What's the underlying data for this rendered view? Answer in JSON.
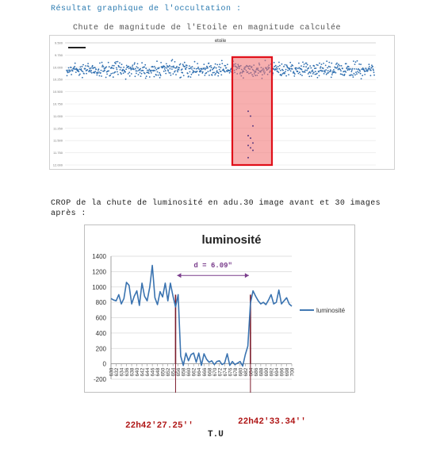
{
  "heading": "Résultat graphique de l'occultation :",
  "top_caption": "Chute de magnitude de l'Etoile en magnitude calculée",
  "section2_caption": "CROP de la chute de luminosité en adu.30 image avant et 30 images après :",
  "time_left": "22h42'27.25''",
  "time_right": "22h42'33.34''",
  "time_axis_label": "T.U",
  "chart_data": [
    {
      "type": "scatter",
      "title": "etoile",
      "y_inverted": true,
      "ylim": [
        9.5,
        12.0
      ],
      "yticks": [
        "9.500",
        "9.750",
        "10.000",
        "10.250",
        "10.500",
        "10.750",
        "11.000",
        "11.250",
        "11.500",
        "11.750",
        "12.000"
      ],
      "legend": "right",
      "legend_label": "",
      "baseline": {
        "mean": 10.05,
        "spread": 0.09,
        "n": 760
      },
      "drop_points": [
        10.9,
        11.0,
        11.2,
        11.4,
        11.45,
        11.55,
        11.6,
        11.65,
        11.7,
        11.85
      ],
      "highlight": "red box around occultation",
      "series_color": "#2f6fb0",
      "highlight_color": "#e0101a"
    },
    {
      "type": "line",
      "title": "luminosité",
      "series_name": "luminosité",
      "series_color": "#3a73b0",
      "ylim": [
        -200,
        1400
      ],
      "yticks": [
        -200,
        0,
        200,
        400,
        600,
        800,
        1000,
        1200,
        1400
      ],
      "xlim": [
        630,
        700
      ],
      "xticks": [
        630,
        632,
        634,
        636,
        638,
        640,
        642,
        644,
        646,
        648,
        650,
        652,
        654,
        656,
        658,
        660,
        662,
        664,
        666,
        668,
        670,
        672,
        674,
        676,
        678,
        680,
        682,
        684,
        686,
        688,
        690,
        692,
        694,
        696,
        698,
        700
      ],
      "grid": true,
      "legend": "right",
      "annotation": "d = 6.09\"",
      "annotation_color": "#7a3d8c",
      "marker_x": [
        655,
        684
      ],
      "marker_color": "#7a1a2a",
      "x": [
        630,
        631,
        632,
        633,
        634,
        635,
        636,
        637,
        638,
        639,
        640,
        641,
        642,
        643,
        644,
        645,
        646,
        647,
        648,
        649,
        650,
        651,
        652,
        653,
        654,
        655,
        656,
        657,
        658,
        659,
        660,
        661,
        662,
        663,
        664,
        665,
        666,
        667,
        668,
        669,
        670,
        671,
        672,
        673,
        674,
        675,
        676,
        677,
        678,
        679,
        680,
        681,
        682,
        683,
        684,
        685,
        686,
        687,
        688,
        689,
        690,
        691,
        692,
        693,
        694,
        695,
        696,
        697,
        698,
        699,
        700
      ],
      "values": [
        850,
        830,
        820,
        900,
        780,
        850,
        1060,
        1020,
        780,
        880,
        950,
        760,
        1050,
        880,
        820,
        1000,
        1280,
        860,
        770,
        940,
        870,
        1050,
        820,
        1050,
        880,
        740,
        900,
        100,
        -20,
        140,
        40,
        120,
        140,
        20,
        140,
        -20,
        130,
        60,
        20,
        40,
        -10,
        30,
        40,
        -10,
        10,
        130,
        -20,
        30,
        -10,
        10,
        30,
        -30,
        120,
        230,
        790,
        950,
        880,
        820,
        780,
        800,
        770,
        830,
        900,
        780,
        800,
        960,
        780,
        820,
        860,
        780,
        750
      ]
    }
  ]
}
